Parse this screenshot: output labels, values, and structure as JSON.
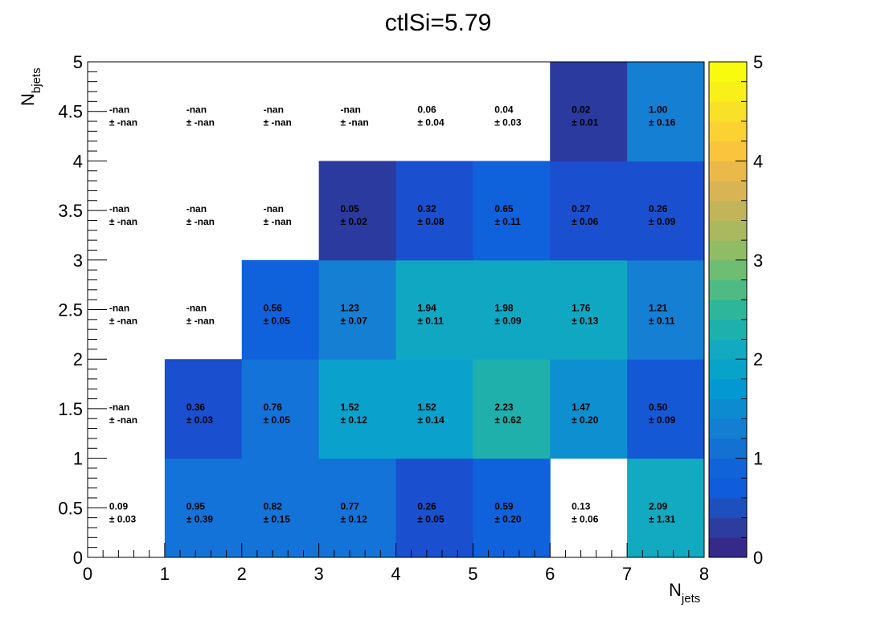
{
  "chart_data": {
    "type": "heatmap",
    "title": "ctlSi=5.79",
    "xlabel": {
      "main": "N",
      "sub": "jets"
    },
    "ylabel": {
      "main": "N",
      "sub": "bjets"
    },
    "xlim": [
      0,
      8
    ],
    "ylim": [
      0,
      5
    ],
    "x_ticks": [
      "0",
      "1",
      "2",
      "3",
      "4",
      "5",
      "6",
      "7",
      "8"
    ],
    "y_ticks": [
      "0",
      "0.5",
      "1",
      "1.5",
      "2",
      "2.5",
      "3",
      "3.5",
      "4",
      "4.5",
      "5"
    ],
    "zlim": [
      0,
      5
    ],
    "z_ticks": [
      "0",
      "1",
      "2",
      "3",
      "4",
      "5"
    ],
    "pm_symbol": "±",
    "colormap": [
      "#352a87",
      "#2d3d9f",
      "#1e50bd",
      "#0f5cdd",
      "#1064d8",
      "#1371d2",
      "#137ed2",
      "#0d8bd1",
      "#0498d2",
      "#08a3c9",
      "#11aac0",
      "#1db1ad",
      "#2eb69b",
      "#4ebb85",
      "#6dbd73",
      "#8fbc64",
      "#aab95d",
      "#c2b559",
      "#d8b454",
      "#ebb84a",
      "#fac43d",
      "#fbd231",
      "#f8e126",
      "#f8f018",
      "#f9fb0e"
    ],
    "cells": [
      {
        "x": 0,
        "y": 0,
        "value": "0.09",
        "error": "0.03",
        "z": 0.09
      },
      {
        "x": 1,
        "y": 0,
        "value": "0.95",
        "error": "0.39",
        "z": 0.95
      },
      {
        "x": 2,
        "y": 0,
        "value": "0.82",
        "error": "0.15",
        "z": 0.82
      },
      {
        "x": 3,
        "y": 0,
        "value": "0.77",
        "error": "0.12",
        "z": 0.77
      },
      {
        "x": 4,
        "y": 0,
        "value": "0.26",
        "error": "0.05",
        "z": 0.26
      },
      {
        "x": 5,
        "y": 0,
        "value": "0.59",
        "error": "0.20",
        "z": 0.59
      },
      {
        "x": 6,
        "y": 0,
        "value": "0.13",
        "error": "0.06",
        "z": 0.13
      },
      {
        "x": 7,
        "y": 0,
        "value": "2.09",
        "error": "1.31",
        "z": 2.09
      },
      {
        "x": 0,
        "y": 1,
        "value": "-nan",
        "error": "-nan",
        "z": null
      },
      {
        "x": 1,
        "y": 1,
        "value": "0.36",
        "error": "0.03",
        "z": 0.36
      },
      {
        "x": 2,
        "y": 1,
        "value": "0.76",
        "error": "0.05",
        "z": 0.76
      },
      {
        "x": 3,
        "y": 1,
        "value": "1.52",
        "error": "0.12",
        "z": 1.52
      },
      {
        "x": 4,
        "y": 1,
        "value": "1.52",
        "error": "0.14",
        "z": 1.52
      },
      {
        "x": 5,
        "y": 1,
        "value": "2.23",
        "error": "0.62",
        "z": 2.23
      },
      {
        "x": 6,
        "y": 1,
        "value": "1.47",
        "error": "0.20",
        "z": 1.47
      },
      {
        "x": 7,
        "y": 1,
        "value": "0.50",
        "error": "0.09",
        "z": 0.5
      },
      {
        "x": 0,
        "y": 2,
        "value": "-nan",
        "error": "-nan",
        "z": null
      },
      {
        "x": 1,
        "y": 2,
        "value": "-nan",
        "error": "-nan",
        "z": null
      },
      {
        "x": 2,
        "y": 2,
        "value": "0.56",
        "error": "0.05",
        "z": 0.56
      },
      {
        "x": 3,
        "y": 2,
        "value": "1.23",
        "error": "0.07",
        "z": 1.23
      },
      {
        "x": 4,
        "y": 2,
        "value": "1.94",
        "error": "0.11",
        "z": 1.94
      },
      {
        "x": 5,
        "y": 2,
        "value": "1.98",
        "error": "0.09",
        "z": 1.98
      },
      {
        "x": 6,
        "y": 2,
        "value": "1.76",
        "error": "0.13",
        "z": 1.76
      },
      {
        "x": 7,
        "y": 2,
        "value": "1.21",
        "error": "0.11",
        "z": 1.21
      },
      {
        "x": 0,
        "y": 3,
        "value": "-nan",
        "error": "-nan",
        "z": null
      },
      {
        "x": 1,
        "y": 3,
        "value": "-nan",
        "error": "-nan",
        "z": null
      },
      {
        "x": 2,
        "y": 3,
        "value": "-nan",
        "error": "-nan",
        "z": null
      },
      {
        "x": 3,
        "y": 3,
        "value": "0.05",
        "error": "0.02",
        "z": 0.05
      },
      {
        "x": 4,
        "y": 3,
        "value": "0.32",
        "error": "0.08",
        "z": 0.32
      },
      {
        "x": 5,
        "y": 3,
        "value": "0.65",
        "error": "0.11",
        "z": 0.65
      },
      {
        "x": 6,
        "y": 3,
        "value": "0.27",
        "error": "0.06",
        "z": 0.27
      },
      {
        "x": 7,
        "y": 3,
        "value": "0.26",
        "error": "0.09",
        "z": 0.26
      },
      {
        "x": 0,
        "y": 4,
        "value": "-nan",
        "error": "-nan",
        "z": null
      },
      {
        "x": 1,
        "y": 4,
        "value": "-nan",
        "error": "-nan",
        "z": null
      },
      {
        "x": 2,
        "y": 4,
        "value": "-nan",
        "error": "-nan",
        "z": null
      },
      {
        "x": 3,
        "y": 4,
        "value": "-nan",
        "error": "-nan",
        "z": null
      },
      {
        "x": 4,
        "y": 4,
        "value": "0.06",
        "error": "0.04",
        "z": 0.06
      },
      {
        "x": 5,
        "y": 4,
        "value": "0.04",
        "error": "0.03",
        "z": 0.04
      },
      {
        "x": 6,
        "y": 4,
        "value": "0.02",
        "error": "0.01",
        "z": 0.02
      },
      {
        "x": 7,
        "y": 4,
        "value": "1.00",
        "error": "0.16",
        "z": 1.0
      }
    ],
    "cell_fill": {
      "1,0": "#1373d8",
      "2,0": "#1373d8",
      "3,0": "#1373d8",
      "4,0": "#1a4fcf",
      "5,0": "#0f62dc",
      "1,1": "#1a4fcf",
      "2,1": "#1373d8",
      "3,1": "#0aa2cc",
      "4,1": "#0aa2cc",
      "5,1": "#1fb0ac",
      "6,1": "#0d8fd0",
      "7,1": "#1558d6",
      "2,2": "#0f62dc",
      "3,2": "#147fd3",
      "4,2": "#10a7c2",
      "5,2": "#10a7c2",
      "6,2": "#10a7c2",
      "7,2": "#147fd3",
      "3,3": "#2b3a9e",
      "4,3": "#1a4fcf",
      "5,3": "#0f62dc",
      "6,3": "#1a4fcf",
      "7,3": "#1a4fcf",
      "6,4": "#2b3a9e",
      "7,4": "#147fd3"
    }
  }
}
